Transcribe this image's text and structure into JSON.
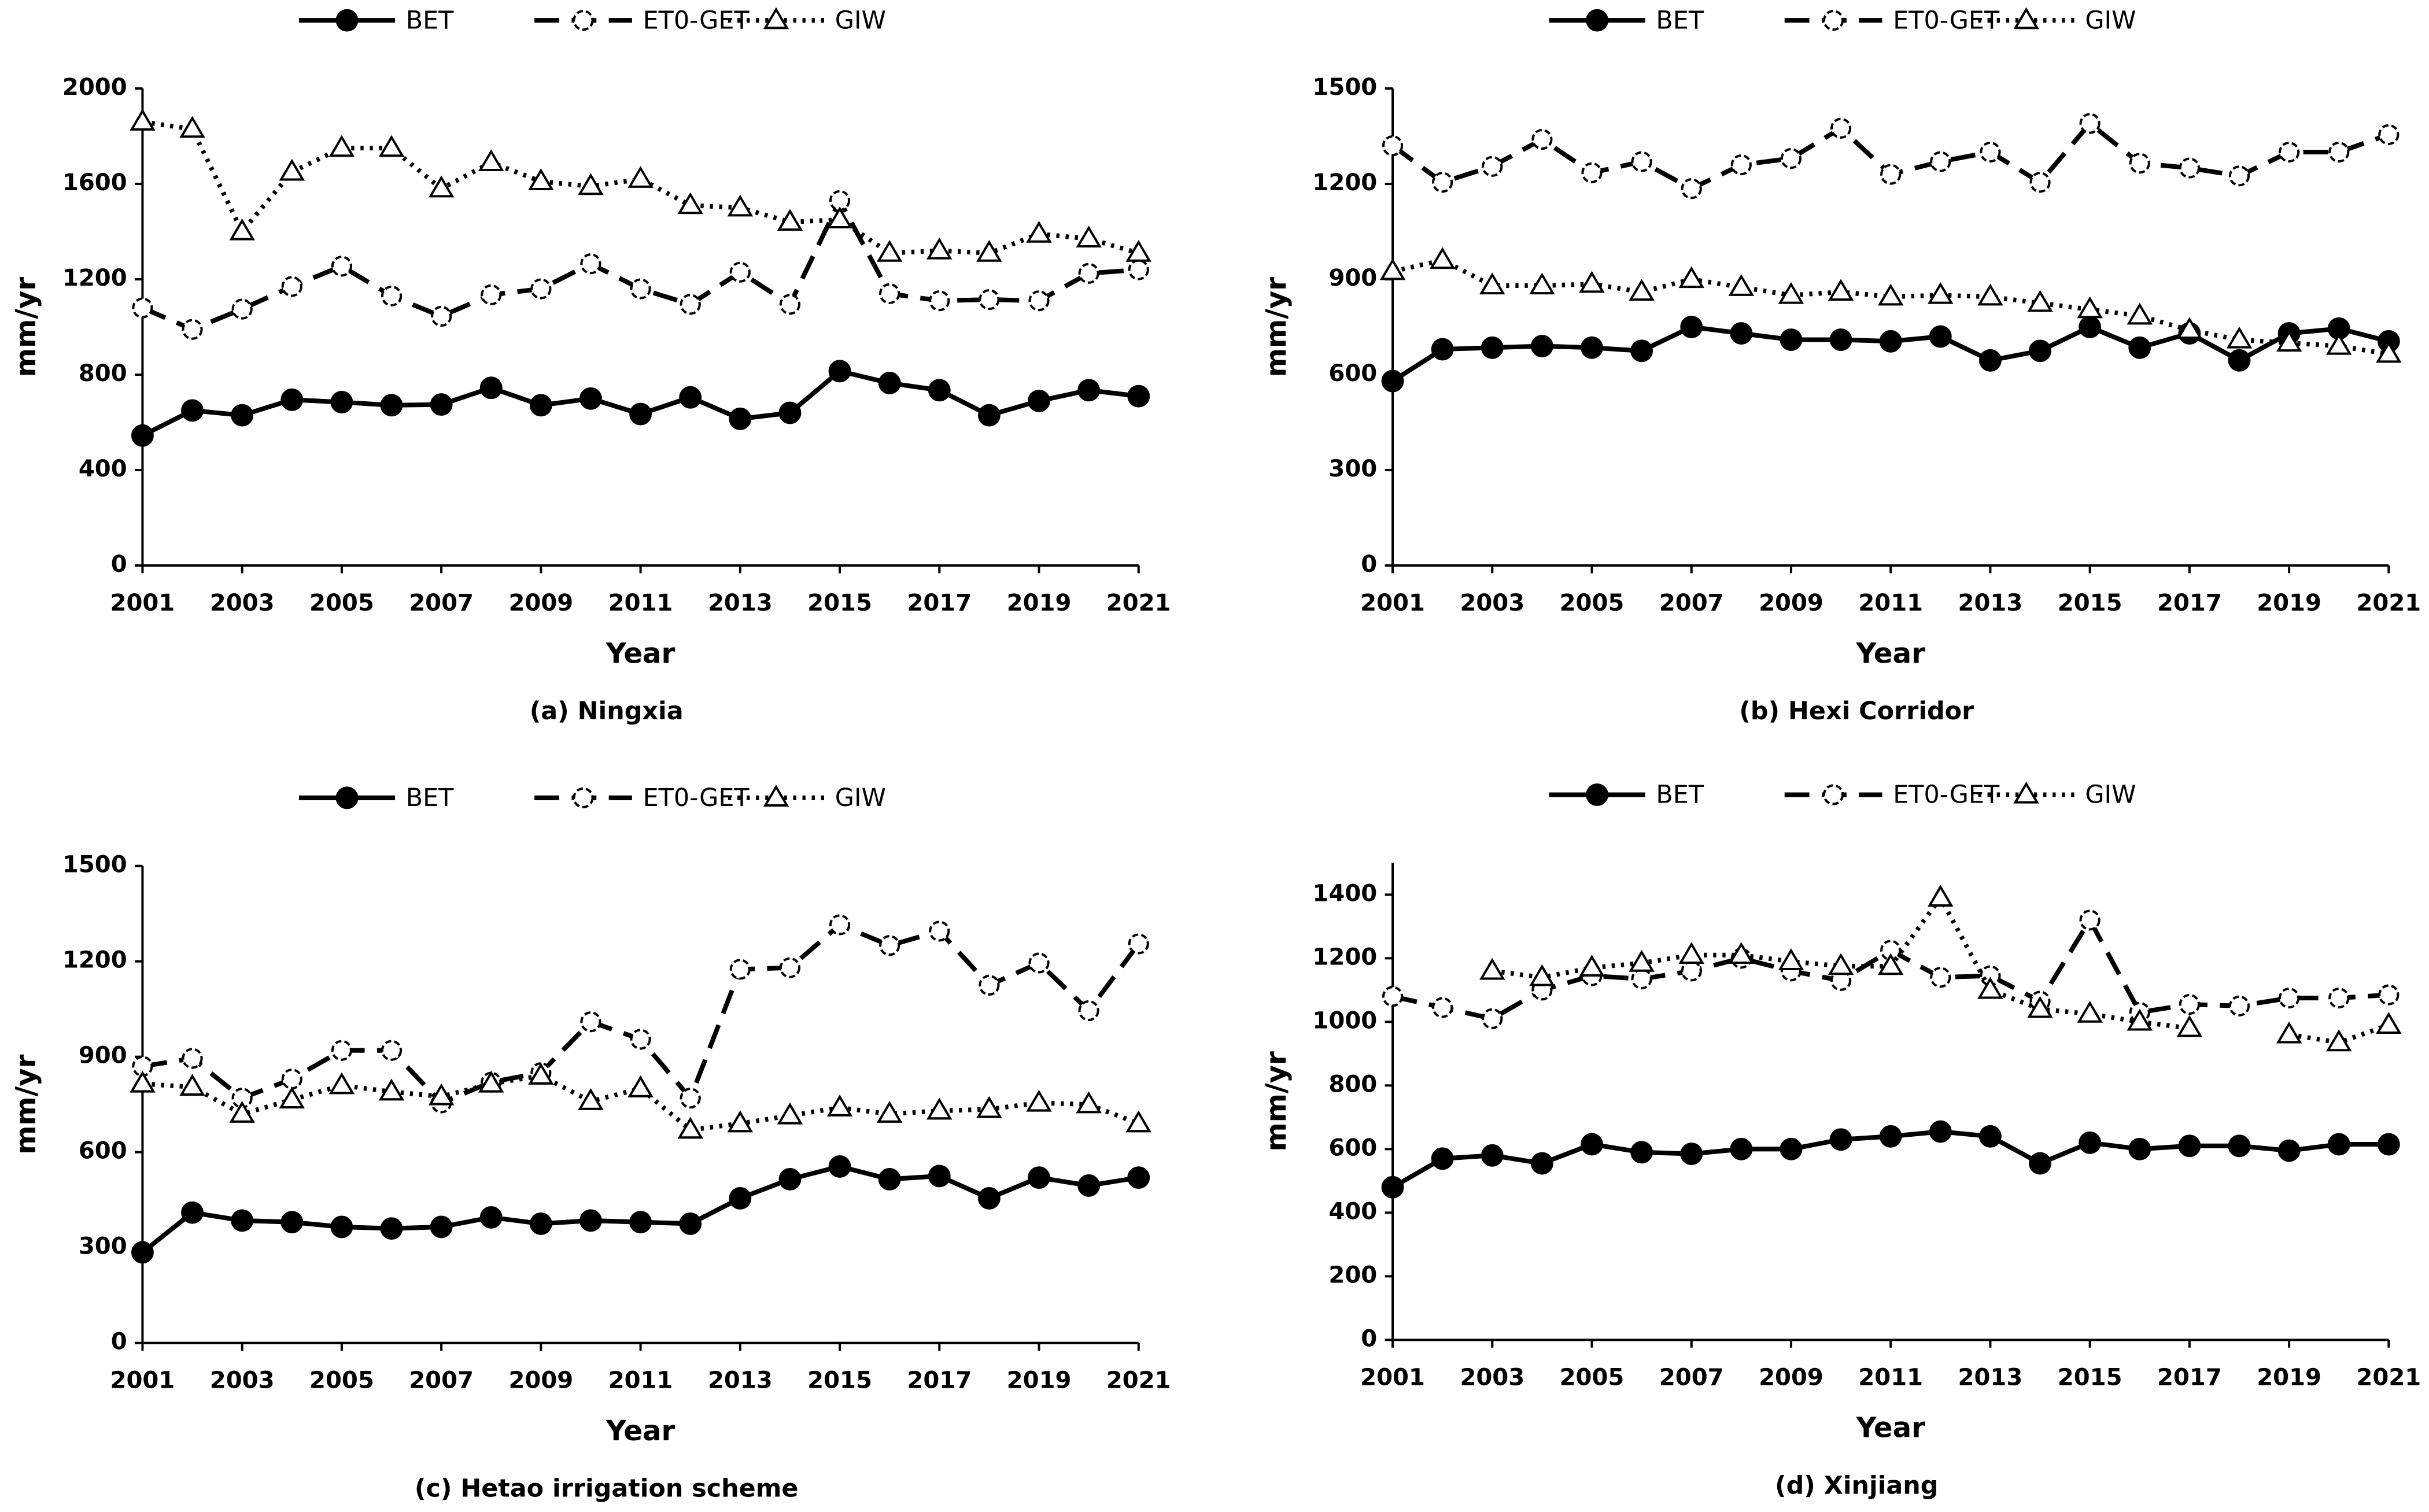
{
  "chart_data": [
    {
      "type": "line",
      "title": "(a) Ningxia",
      "xlabel": "Year",
      "ylabel": "mm/yr",
      "x": [
        2001,
        2002,
        2003,
        2004,
        2005,
        2006,
        2007,
        2008,
        2009,
        2010,
        2011,
        2012,
        2013,
        2014,
        2015,
        2016,
        2017,
        2018,
        2019,
        2020,
        2021
      ],
      "xlim": [
        2001,
        2021
      ],
      "xticks": [
        2001,
        2003,
        2005,
        2007,
        2009,
        2011,
        2013,
        2015,
        2017,
        2019,
        2021
      ],
      "ylim": [
        0,
        2000
      ],
      "yticks": [
        0,
        400,
        800,
        1200,
        1600,
        2000
      ],
      "series": [
        {
          "name": "BET",
          "color": "#000000",
          "line": "solid",
          "marker": "circle-filled",
          "values": [
            545,
            650,
            630,
            695,
            685,
            672,
            675,
            745,
            672,
            700,
            635,
            705,
            615,
            640,
            815,
            765,
            735,
            630,
            690,
            735,
            710
          ]
        },
        {
          "name": "ET0-GET",
          "color": "#000000",
          "line": "dashed",
          "marker": "circle-open",
          "values": [
            1080,
            990,
            1075,
            1170,
            1255,
            1130,
            1045,
            1135,
            1160,
            1265,
            1160,
            1095,
            1230,
            1095,
            1530,
            1140,
            1110,
            1115,
            1110,
            1225,
            1240
          ]
        },
        {
          "name": "GIW",
          "color": "#000000",
          "line": "dotted",
          "marker": "triangle-open",
          "values": [
            1860,
            1830,
            1400,
            1650,
            1750,
            1750,
            1580,
            1690,
            1610,
            1590,
            1620,
            1510,
            1500,
            1440,
            1450,
            1310,
            1320,
            1310,
            1390,
            1370,
            1310
          ]
        }
      ]
    },
    {
      "type": "line",
      "title": "(b) Hexi Corridor",
      "xlabel": "Year",
      "ylabel": "mm/yr",
      "x": [
        2001,
        2002,
        2003,
        2004,
        2005,
        2006,
        2007,
        2008,
        2009,
        2010,
        2011,
        2012,
        2013,
        2014,
        2015,
        2016,
        2017,
        2018,
        2019,
        2020,
        2021
      ],
      "xlim": [
        2001,
        2021
      ],
      "xticks": [
        2001,
        2003,
        2005,
        2007,
        2009,
        2011,
        2013,
        2015,
        2017,
        2019,
        2021
      ],
      "ylim": [
        0,
        1500
      ],
      "yticks": [
        0,
        300,
        600,
        900,
        1200,
        1500
      ],
      "series": [
        {
          "name": "BET",
          "color": "#000000",
          "line": "solid",
          "marker": "circle-filled",
          "values": [
            580,
            680,
            685,
            690,
            685,
            675,
            750,
            730,
            710,
            710,
            705,
            720,
            645,
            675,
            750,
            685,
            730,
            645,
            730,
            745,
            705
          ]
        },
        {
          "name": "ET0-GET",
          "color": "#000000",
          "line": "dashed",
          "marker": "circle-open",
          "values": [
            1320,
            1205,
            1255,
            1340,
            1235,
            1270,
            1185,
            1260,
            1280,
            1375,
            1230,
            1270,
            1300,
            1205,
            1390,
            1265,
            1250,
            1225,
            1300,
            1300,
            1355
          ]
        },
        {
          "name": "GIW",
          "color": "#000000",
          "line": "dotted",
          "marker": "triangle-open",
          "values": [
            925,
            960,
            880,
            880,
            885,
            860,
            900,
            875,
            850,
            860,
            845,
            850,
            845,
            825,
            805,
            785,
            740,
            710,
            700,
            690,
            665
          ]
        }
      ]
    },
    {
      "type": "line",
      "title": "(c) Hetao irrigation scheme",
      "xlabel": "Year",
      "ylabel": "mm/yr",
      "x": [
        2001,
        2002,
        2003,
        2004,
        2005,
        2006,
        2007,
        2008,
        2009,
        2010,
        2011,
        2012,
        2013,
        2014,
        2015,
        2016,
        2017,
        2018,
        2019,
        2020,
        2021
      ],
      "xlim": [
        2001,
        2021
      ],
      "xticks": [
        2001,
        2003,
        2005,
        2007,
        2009,
        2011,
        2013,
        2015,
        2017,
        2019,
        2021
      ],
      "ylim": [
        0,
        1500
      ],
      "yticks": [
        0,
        300,
        600,
        900,
        1200,
        1500
      ],
      "series": [
        {
          "name": "BET",
          "color": "#000000",
          "line": "solid",
          "marker": "circle-filled",
          "values": [
            285,
            410,
            385,
            380,
            365,
            360,
            365,
            395,
            375,
            385,
            380,
            375,
            455,
            515,
            555,
            515,
            525,
            455,
            520,
            495,
            520
          ]
        },
        {
          "name": "ET0-GET",
          "color": "#000000",
          "line": "dashed",
          "marker": "circle-open",
          "values": [
            870,
            895,
            770,
            830,
            920,
            920,
            755,
            820,
            850,
            1010,
            955,
            770,
            1175,
            1180,
            1315,
            1250,
            1295,
            1125,
            1195,
            1045,
            1255
          ]
        },
        {
          "name": "GIW",
          "color": "#000000",
          "line": "dotted",
          "marker": "triangle-open",
          "values": [
            815,
            805,
            720,
            765,
            810,
            790,
            775,
            815,
            840,
            760,
            800,
            670,
            690,
            715,
            740,
            720,
            730,
            735,
            755,
            750,
            690
          ]
        }
      ]
    },
    {
      "type": "line",
      "title": "(d) Xinjiang",
      "xlabel": "Year",
      "ylabel": "mm/yr",
      "x": [
        2001,
        2002,
        2003,
        2004,
        2005,
        2006,
        2007,
        2008,
        2009,
        2010,
        2011,
        2012,
        2013,
        2014,
        2015,
        2016,
        2017,
        2018,
        2019,
        2020,
        2021
      ],
      "xlim": [
        2001,
        2021
      ],
      "xticks": [
        2001,
        2003,
        2005,
        2007,
        2009,
        2011,
        2013,
        2015,
        2017,
        2019,
        2021
      ],
      "ylim": [
        0,
        1500
      ],
      "yticks": [
        0,
        200,
        400,
        600,
        800,
        1000,
        1200,
        1400
      ],
      "series": [
        {
          "name": "BET",
          "color": "#000000",
          "line": "solid",
          "marker": "circle-filled",
          "values": [
            480,
            570,
            580,
            555,
            615,
            590,
            585,
            600,
            600,
            630,
            640,
            655,
            640,
            555,
            620,
            600,
            610,
            610,
            595,
            615,
            615
          ]
        },
        {
          "name": "ET0-GET",
          "color": "#000000",
          "line": "dashed",
          "marker": "circle-open",
          "values": [
            1080,
            1045,
            1010,
            1100,
            1145,
            1135,
            1160,
            1200,
            1160,
            1130,
            1225,
            1140,
            1145,
            1065,
            1320,
            1030,
            1055,
            1050,
            1075,
            1075,
            1085
          ]
        },
        {
          "name": "GIW",
          "color": "#000000",
          "line": "dotted",
          "marker": "triangle-open",
          "values": [
            null,
            null,
            1160,
            1140,
            1170,
            1185,
            1210,
            1210,
            1190,
            1175,
            1175,
            1390,
            1100,
            1040,
            1025,
            1000,
            980,
            null,
            960,
            935,
            990
          ]
        }
      ]
    }
  ]
}
